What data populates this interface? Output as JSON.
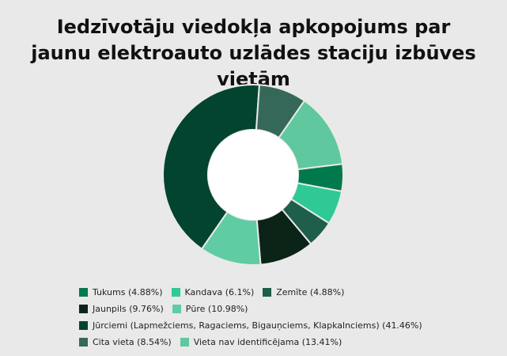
{
  "title_lines": [
    "Iedzīvotāju viedokļa apkopojums par",
    "jaunu elektroauto uzlādes staciju izbūves vietām"
  ],
  "chart_data": {
    "type": "pie",
    "donut": true,
    "title": "Iedzīvotāju viedokļa apkopojums par jaunu elektroauto uzlādes staciju izbūves vietām",
    "legend_position": "bottom-left",
    "slices": [
      {
        "label": "Tukums",
        "value": 4.88,
        "color": "#007a4d"
      },
      {
        "label": "Kandava",
        "value": 6.1,
        "color": "#2ec994"
      },
      {
        "label": "Zemīte",
        "value": 4.88,
        "color": "#1e5e4b"
      },
      {
        "label": "Jaunpils",
        "value": 9.76,
        "color": "#0c2418"
      },
      {
        "label": "Pūre",
        "value": 10.98,
        "color": "#5fcca4"
      },
      {
        "label": "Jūrciemi (Lapmežciems, Ragaciems, Bigauņciems, Klapkalnciems)",
        "value": 41.46,
        "color": "#024430"
      },
      {
        "label": "Cita vieta",
        "value": 8.54,
        "color": "#356858"
      },
      {
        "label": "Vieta nav identificējama",
        "value": 13.41,
        "color": "#5fc89e"
      }
    ]
  },
  "legend": [
    {
      "text": "Tukums (4.88%)",
      "color": "#007a4d"
    },
    {
      "text": "Kandava (6.1%)",
      "color": "#2ec994"
    },
    {
      "text": "Zemīte (4.88%)",
      "color": "#1e5e4b"
    },
    {
      "text": "Jaunpils (9.76%)",
      "color": "#0c2418"
    },
    {
      "text": "Pūre (10.98%)",
      "color": "#5fcca4"
    },
    {
      "text": "Jūrciemi (Lapmežciems, Ragaciems, Bigauņciems, Klapkalnciems) (41.46%)",
      "color": "#024430"
    },
    {
      "text": "Cita vieta (8.54%)",
      "color": "#356858"
    },
    {
      "text": "Vieta nav identificējama (13.41%)",
      "color": "#5fc89e"
    }
  ]
}
